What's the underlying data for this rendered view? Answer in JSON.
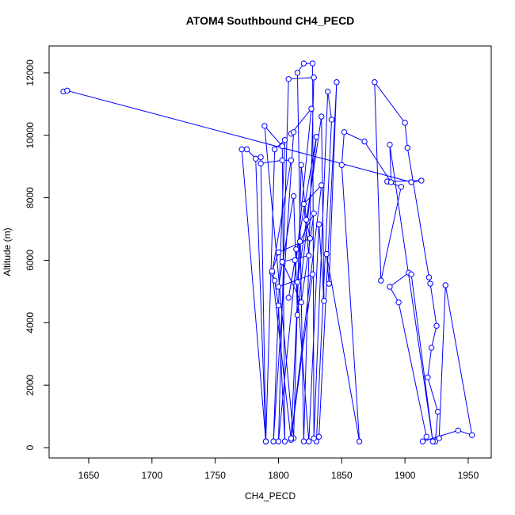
{
  "chart_data": {
    "type": "line",
    "markers": true,
    "title": "ATOM4 Southbound CH4_PECD",
    "x_label": "CH4_PECD",
    "y_label": "Altitude (m)",
    "color": "#0000ff",
    "xlim": [
      1618.7,
      1968.2
    ],
    "ylim": [
      -330,
      12860
    ],
    "xticks": [
      1650,
      1700,
      1750,
      1800,
      1850,
      1900,
      1950
    ],
    "yticks": [
      0,
      2000,
      4000,
      6000,
      8000,
      10000,
      12000
    ],
    "x": [
      1630,
      1633,
      1905,
      1913,
      1886,
      1897,
      1881,
      1876,
      1900,
      1902,
      1919,
      1920,
      1925,
      1921,
      1918,
      1926,
      1924,
      1927,
      1932,
      1953,
      1942,
      1914,
      1917,
      1895,
      1888,
      1903,
      1905,
      1922,
      1888,
      1889,
      1868,
      1852,
      1850,
      1864,
      1838,
      1840,
      1846,
      1832,
      1830,
      1842,
      1839,
      1828,
      1827,
      1820,
      1815,
      1820,
      1828,
      1808,
      1800,
      1826,
      1810,
      1812,
      1796,
      1805,
      1797,
      1790,
      1782,
      1775,
      1771,
      1790,
      1786,
      1786,
      1803,
      1810,
      1795,
      1797,
      1800,
      1805,
      1803,
      1789,
      1812,
      1818,
      1822,
      1825,
      1800,
      1795,
      1810,
      1817,
      1815,
      1834,
      1836,
      1832,
      1824,
      1813,
      1808,
      1830,
      1815,
      1812,
      1800,
      1827,
      1810,
      1834,
      1820,
      1824,
      1803,
      1818,
      1828,
      1814
    ],
    "values": [
      11400,
      11430,
      8500,
      8550,
      8520,
      8350,
      5350,
      11700,
      10400,
      9600,
      5450,
      5250,
      3900,
      3200,
      2250,
      1150,
      200,
      300,
      5200,
      400,
      550,
      200,
      350,
      4650,
      5150,
      5600,
      5550,
      200,
      9700,
      8500,
      9800,
      10100,
      9050,
      200,
      6200,
      5250,
      11700,
      350,
      200,
      10500,
      11400,
      300,
      12300,
      12300,
      12000,
      200,
      11850,
      11800,
      200,
      10850,
      10050,
      10100,
      200,
      9850,
      9550,
      200,
      9250,
      9550,
      9550,
      200,
      9300,
      9100,
      9200,
      9200,
      5600,
      5350,
      4550,
      200,
      9650,
      10300,
      300,
      9050,
      7300,
      6700,
      6250,
      5650,
      250,
      6600,
      5300,
      10600,
      4700,
      7150,
      200,
      6000,
      4800,
      9950,
      4250,
      8050,
      5150,
      5550,
      300,
      8400,
      7800,
      6150,
      5950,
      4650,
      7500,
      6350
    ]
  }
}
